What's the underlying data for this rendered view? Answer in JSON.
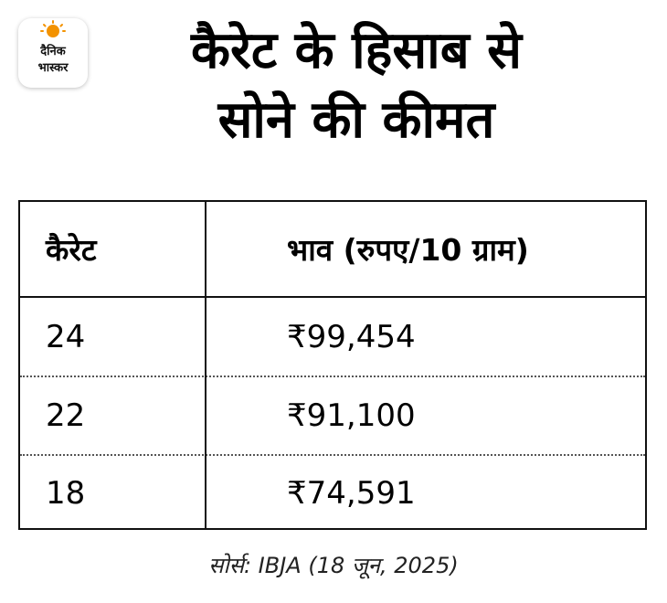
{
  "logo": {
    "line1": "दैनिक",
    "line2": "भास्कर",
    "sun_color": "#F39200"
  },
  "title": {
    "line1": "कैरेट के हिसाब से",
    "line2": "सोने की कीमत"
  },
  "table": {
    "headers": [
      "कैरेट",
      "भाव (रुपए/10 ग्राम)"
    ],
    "rows": [
      [
        "24",
        "₹99,454"
      ],
      [
        "22",
        "₹91,100"
      ],
      [
        "18",
        "₹74,591"
      ]
    ]
  },
  "source": "सोर्स: IBJA (18 जून, 2025)"
}
